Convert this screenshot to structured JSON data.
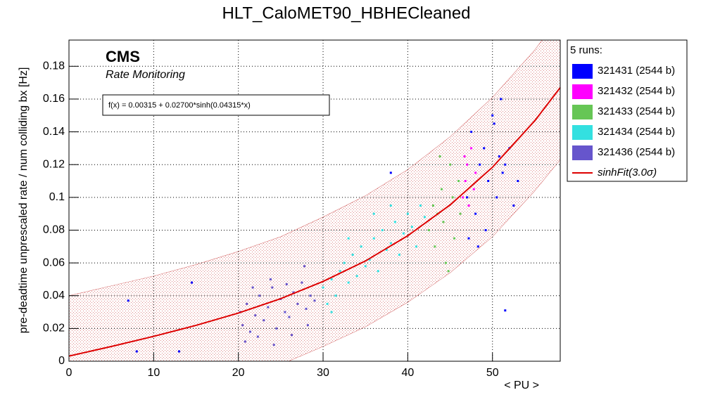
{
  "chart_data": {
    "type": "scatter",
    "title": "HLT_CaloMET90_HBHECleaned",
    "x_label": "< PU >",
    "y_label": "pre-deadtime unprescaled rate / num colliding bx [Hz]",
    "annotations": {
      "experiment": "CMS",
      "subtitle": "Rate Monitoring",
      "formula": "f(x) = 0.00315 + 0.02700*sinh(0.04315*x)"
    },
    "legend_title": "5 runs:",
    "legend_position": "right",
    "grid": true,
    "xlim": [
      0,
      58
    ],
    "ylim": [
      0,
      0.196
    ],
    "xticks": [
      0,
      10,
      20,
      30,
      40,
      50
    ],
    "yticks": [
      0,
      0.02,
      0.04,
      0.06,
      0.08,
      0.1,
      0.12,
      0.14,
      0.16,
      0.18
    ],
    "series": [
      {
        "name": "321431 (2544 b)",
        "color": "#0000ff",
        "x": [
          47,
          47.5,
          48,
          48.5,
          49,
          49.5,
          50,
          50.5,
          51,
          51.5,
          52,
          49.2,
          50.2,
          51.2,
          52.5,
          48.3,
          50.8,
          38,
          51.5,
          8,
          13,
          7,
          14.5,
          47.2,
          53
        ],
        "values": [
          0.1,
          0.14,
          0.09,
          0.12,
          0.13,
          0.11,
          0.15,
          0.1,
          0.16,
          0.12,
          0.13,
          0.08,
          0.145,
          0.115,
          0.095,
          0.07,
          0.125,
          0.115,
          0.031,
          0.006,
          0.006,
          0.037,
          0.048,
          0.075,
          0.11
        ]
      },
      {
        "name": "321432 (2544 b)",
        "color": "#ff00ff",
        "x": [
          46.5,
          46.8,
          47,
          47.2,
          47.5,
          47.8,
          48,
          46.7
        ],
        "values": [
          0.1,
          0.11,
          0.12,
          0.095,
          0.13,
          0.105,
          0.115,
          0.125
        ]
      },
      {
        "name": "321433 (2544 b)",
        "color": "#66c655",
        "x": [
          42.5,
          43,
          43.2,
          43.5,
          44,
          44.2,
          44.5,
          45,
          45.3,
          45.5,
          46,
          46.2,
          44.8,
          43.8
        ],
        "values": [
          0.08,
          0.095,
          0.07,
          0.09,
          0.105,
          0.085,
          0.06,
          0.12,
          0.1,
          0.075,
          0.11,
          0.09,
          0.055,
          0.125
        ]
      },
      {
        "name": "321434 (2544 b)",
        "color": "#33e0e0",
        "x": [
          30,
          30.5,
          31,
          31.5,
          32,
          32.5,
          33,
          33.5,
          34,
          34.5,
          35,
          35.5,
          36,
          36.5,
          37,
          37.5,
          38,
          38.5,
          39,
          39.5,
          40,
          40.5,
          41,
          41.5,
          42,
          33,
          36,
          38,
          31
        ],
        "values": [
          0.045,
          0.035,
          0.05,
          0.04,
          0.055,
          0.06,
          0.048,
          0.065,
          0.052,
          0.07,
          0.058,
          0.062,
          0.075,
          0.055,
          0.08,
          0.068,
          0.072,
          0.085,
          0.065,
          0.078,
          0.09,
          0.082,
          0.07,
          0.095,
          0.088,
          0.075,
          0.09,
          0.095,
          0.03
        ]
      },
      {
        "name": "321436 (2544 b)",
        "color": "#6655cc",
        "x": [
          20.2,
          20.5,
          21,
          21.4,
          22,
          22.5,
          23,
          23.5,
          24,
          24.5,
          25,
          25.5,
          26,
          26.5,
          27,
          27.5,
          28,
          28.5,
          29,
          20.8,
          22.3,
          24.2,
          26.3,
          28.2,
          21.7,
          23.8,
          25.7,
          27.8
        ],
        "values": [
          0.03,
          0.022,
          0.035,
          0.018,
          0.028,
          0.04,
          0.025,
          0.033,
          0.045,
          0.02,
          0.038,
          0.03,
          0.027,
          0.042,
          0.035,
          0.048,
          0.032,
          0.04,
          0.037,
          0.012,
          0.015,
          0.01,
          0.016,
          0.022,
          0.045,
          0.05,
          0.047,
          0.058
        ]
      }
    ],
    "fit": {
      "name": "sinhFit(3.0σ)",
      "color": "#dd0000",
      "x": [
        0,
        5,
        10,
        15,
        20,
        25,
        30,
        35,
        40,
        45,
        50,
        55,
        58
      ],
      "values": [
        0.00315,
        0.009,
        0.0152,
        0.0219,
        0.0294,
        0.0382,
        0.0487,
        0.0612,
        0.0766,
        0.0954,
        0.1184,
        0.1468,
        0.167
      ],
      "band_lower": [
        -0.037,
        -0.031,
        -0.025,
        -0.018,
        -0.011,
        -0.002,
        0.009,
        0.021,
        0.036,
        0.054,
        0.076,
        0.104,
        0.123
      ],
      "band_upper": [
        0.04,
        0.046,
        0.052,
        0.059,
        0.067,
        0.076,
        0.088,
        0.101,
        0.117,
        0.137,
        0.161,
        0.19,
        0.211
      ]
    }
  }
}
